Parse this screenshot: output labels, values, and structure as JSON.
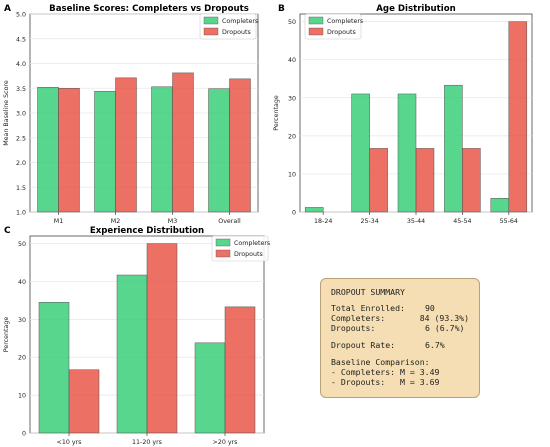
{
  "colors": {
    "completers": "#2ecc71",
    "dropouts": "#e74c3c",
    "grid": "#e6e6e6",
    "legend_bg": "#ffffff",
    "summary_bg": "#f5deb3"
  },
  "chart_data": [
    {
      "panel": "A",
      "type": "bar",
      "title": "Baseline Scores: Completers vs Dropouts",
      "xlabel": "",
      "ylabel": "Mean Baseline Score",
      "categories": [
        "M1",
        "M2",
        "M3",
        "Overall"
      ],
      "series": [
        {
          "name": "Completers",
          "values": [
            3.52,
            3.44,
            3.53,
            3.49
          ]
        },
        {
          "name": "Dropouts",
          "values": [
            3.5,
            3.71,
            3.81,
            3.69
          ]
        }
      ],
      "ylim": [
        1.0,
        5.0
      ],
      "yticks": [
        "1.0",
        "1.5",
        "2.0",
        "2.5",
        "3.0",
        "3.5",
        "4.0",
        "4.5",
        "5.0"
      ],
      "legend": "top-right",
      "grid": true
    },
    {
      "panel": "B",
      "type": "bar",
      "title": "Age Distribution",
      "xlabel": "",
      "ylabel": "Percentage",
      "categories": [
        "18-24",
        "25-34",
        "35-44",
        "45-54",
        "55-64"
      ],
      "series": [
        {
          "name": "Completers",
          "values": [
            1.2,
            31.0,
            31.0,
            33.3,
            3.6
          ]
        },
        {
          "name": "Dropouts",
          "values": [
            0,
            16.7,
            16.7,
            16.7,
            50.0
          ]
        }
      ],
      "ylim": [
        0,
        52
      ],
      "yticks": [
        "0",
        "10",
        "20",
        "30",
        "40",
        "50"
      ],
      "legend": "top-left",
      "grid": true
    },
    {
      "panel": "C",
      "type": "bar",
      "title": "Experience Distribution",
      "xlabel": "",
      "ylabel": "Percentage",
      "categories": [
        "<10 yrs",
        "11-20 yrs",
        ">20 yrs"
      ],
      "series": [
        {
          "name": "Completers",
          "values": [
            34.5,
            41.7,
            23.8
          ]
        },
        {
          "name": "Dropouts",
          "values": [
            16.7,
            50.0,
            33.3
          ]
        }
      ],
      "ylim": [
        0,
        52
      ],
      "yticks": [
        "0",
        "10",
        "20",
        "30",
        "40",
        "50"
      ],
      "legend": "top-right",
      "grid": true
    }
  ],
  "summary": {
    "title": "DROPOUT SUMMARY",
    "total_label": "Total Enrolled:",
    "total_value": "90",
    "completers_label": "Completers:",
    "completers_value": "84 (93.3%)",
    "dropouts_label": "Dropouts:",
    "dropouts_value": "6 (6.7%)",
    "rate_label": "Dropout Rate:",
    "rate_value": "6.7%",
    "comparison_title": "Baseline Comparison:",
    "comparison_completers": "- Completers: M = 3.49",
    "comparison_dropouts": "- Dropouts:   M = 3.69"
  }
}
